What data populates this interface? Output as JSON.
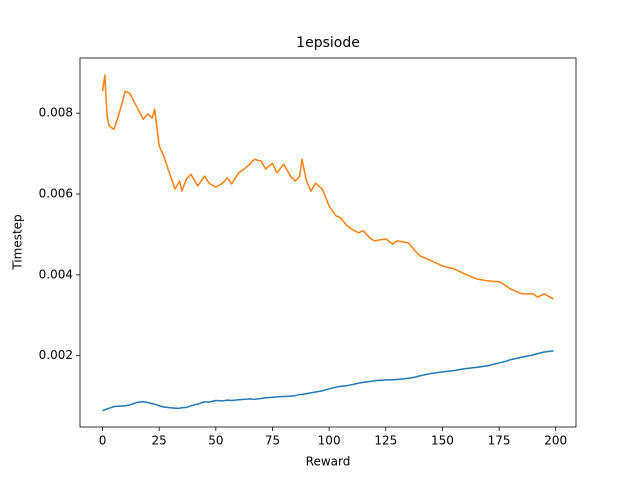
{
  "chart_data": {
    "type": "line",
    "title": "1epsiode",
    "x_label": "Reward",
    "y_label": "Timestep",
    "x": [
      0,
      1,
      2,
      3,
      5,
      7,
      10,
      12,
      15,
      18,
      20,
      22,
      23,
      25,
      27,
      30,
      32,
      34,
      35,
      37,
      39,
      42,
      45,
      47,
      50,
      53,
      55,
      57,
      60,
      63,
      65,
      67,
      70,
      72,
      75,
      77,
      80,
      83,
      85,
      87,
      88,
      90,
      92,
      94,
      97,
      100,
      103,
      105,
      108,
      110,
      113,
      115,
      118,
      120,
      125,
      128,
      130,
      135,
      138,
      140,
      145,
      150,
      155,
      160,
      165,
      170,
      175,
      178,
      180,
      185,
      190,
      192,
      195,
      199
    ],
    "series": [
      {
        "color": "#1f77b4",
        "values": [
          0.00064,
          0.00066,
          0.00068,
          0.0007,
          0.00074,
          0.00075,
          0.00076,
          0.00078,
          0.00084,
          0.00086,
          0.00084,
          0.00081,
          0.0008,
          0.00076,
          0.00073,
          0.00071,
          0.0007,
          0.0007,
          0.00071,
          0.00072,
          0.00076,
          0.0008,
          0.00086,
          0.00085,
          0.00089,
          0.00088,
          0.0009,
          0.00089,
          0.00091,
          0.00092,
          0.00093,
          0.00092,
          0.00094,
          0.00096,
          0.00097,
          0.00098,
          0.00099,
          0.001,
          0.00101,
          0.00104,
          0.00104,
          0.00106,
          0.00108,
          0.0011,
          0.00113,
          0.00118,
          0.00122,
          0.00124,
          0.00126,
          0.00128,
          0.00132,
          0.00134,
          0.00136,
          0.00138,
          0.0014,
          0.0014,
          0.00141,
          0.00144,
          0.00147,
          0.0015,
          0.00156,
          0.0016,
          0.00163,
          0.00168,
          0.00171,
          0.00175,
          0.00182,
          0.00186,
          0.0019,
          0.00196,
          0.00202,
          0.00205,
          0.00209,
          0.00212
        ]
      },
      {
        "color": "#ff7f0e",
        "values": [
          0.00854,
          0.00894,
          0.00793,
          0.00768,
          0.0076,
          0.00793,
          0.00854,
          0.00849,
          0.00817,
          0.00785,
          0.00798,
          0.00788,
          0.0081,
          0.00719,
          0.00694,
          0.00644,
          0.00612,
          0.00632,
          0.00607,
          0.00637,
          0.00649,
          0.0062,
          0.00644,
          0.00627,
          0.00617,
          0.00627,
          0.0064,
          0.00625,
          0.00652,
          0.00664,
          0.00674,
          0.00686,
          0.00681,
          0.00662,
          0.00676,
          0.00652,
          0.00674,
          0.00644,
          0.00632,
          0.00644,
          0.00686,
          0.00632,
          0.00607,
          0.00627,
          0.00612,
          0.0057,
          0.00546,
          0.00541,
          0.00521,
          0.00513,
          0.00504,
          0.00509,
          0.00491,
          0.00484,
          0.00489,
          0.00476,
          0.00484,
          0.00479,
          0.00459,
          0.00447,
          0.00435,
          0.00422,
          0.00415,
          0.00402,
          0.0039,
          0.00385,
          0.00383,
          0.00373,
          0.00365,
          0.00353,
          0.00353,
          0.00345,
          0.00353,
          0.0034
        ]
      }
    ],
    "xlim": [
      -9.95,
      208.95
    ],
    "xticks": [
      0,
      25,
      50,
      75,
      100,
      125,
      150,
      175,
      200
    ],
    "ylim": [
      0.000235,
      0.009365
    ],
    "yticks": [
      0.002,
      0.004,
      0.006,
      0.008
    ],
    "grid": false
  }
}
